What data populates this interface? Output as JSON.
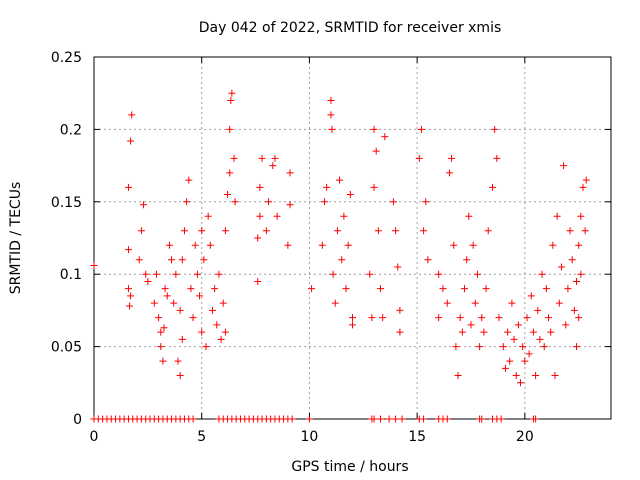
{
  "chart_data": {
    "type": "scatter",
    "title": "Day 042 of 2022, SRMTID for receiver xmis",
    "xlabel": "GPS time / hours",
    "ylabel": "SRMTID / TECUs",
    "xlim": [
      0,
      24
    ],
    "ylim": [
      0,
      0.25
    ],
    "x_ticks": [
      0,
      5,
      10,
      15,
      20
    ],
    "x_tick_labels": [
      "0",
      "5",
      "10",
      "15",
      "20"
    ],
    "y_ticks": [
      0,
      0.05,
      0.1,
      0.15,
      0.2,
      0.25
    ],
    "y_tick_labels": [
      "0",
      "0.05",
      "0.1",
      "0.15",
      "0.2",
      "0.25"
    ],
    "grid": true,
    "marker": "plus",
    "color": "#ff0000",
    "series": [
      {
        "name": "SRMTID",
        "points": [
          [
            0.0,
            0.106
          ],
          [
            1.6,
            0.09
          ],
          [
            1.6,
            0.117
          ],
          [
            1.6,
            0.16
          ],
          [
            1.7,
            0.192
          ],
          [
            1.75,
            0.21
          ],
          [
            1.7,
            0.085
          ],
          [
            1.65,
            0.078
          ],
          [
            2.1,
            0.11
          ],
          [
            2.2,
            0.13
          ],
          [
            2.3,
            0.148
          ],
          [
            2.4,
            0.1
          ],
          [
            2.5,
            0.095
          ],
          [
            2.8,
            0.08
          ],
          [
            2.9,
            0.1
          ],
          [
            3.0,
            0.07
          ],
          [
            3.1,
            0.06
          ],
          [
            3.1,
            0.05
          ],
          [
            3.2,
            0.04
          ],
          [
            3.25,
            0.063
          ],
          [
            3.3,
            0.09
          ],
          [
            3.4,
            0.085
          ],
          [
            3.5,
            0.12
          ],
          [
            3.6,
            0.11
          ],
          [
            3.7,
            0.08
          ],
          [
            3.8,
            0.1
          ],
          [
            3.9,
            0.04
          ],
          [
            4.0,
            0.03
          ],
          [
            4.0,
            0.075
          ],
          [
            4.1,
            0.055
          ],
          [
            4.1,
            0.11
          ],
          [
            4.2,
            0.13
          ],
          [
            4.3,
            0.15
          ],
          [
            4.4,
            0.165
          ],
          [
            4.5,
            0.09
          ],
          [
            4.6,
            0.07
          ],
          [
            4.7,
            0.12
          ],
          [
            4.8,
            0.1
          ],
          [
            4.9,
            0.085
          ],
          [
            5.0,
            0.06
          ],
          [
            5.0,
            0.13
          ],
          [
            5.1,
            0.11
          ],
          [
            5.2,
            0.05
          ],
          [
            5.3,
            0.14
          ],
          [
            5.4,
            0.12
          ],
          [
            5.5,
            0.075
          ],
          [
            5.6,
            0.09
          ],
          [
            5.7,
            0.065
          ],
          [
            5.8,
            0.1
          ],
          [
            5.9,
            0.055
          ],
          [
            6.0,
            0.08
          ],
          [
            6.1,
            0.06
          ],
          [
            6.1,
            0.13
          ],
          [
            6.2,
            0.155
          ],
          [
            6.3,
            0.17
          ],
          [
            6.3,
            0.2
          ],
          [
            6.35,
            0.22
          ],
          [
            6.4,
            0.225
          ],
          [
            6.5,
            0.18
          ],
          [
            6.55,
            0.15
          ],
          [
            7.6,
            0.095
          ],
          [
            7.6,
            0.125
          ],
          [
            7.7,
            0.14
          ],
          [
            7.7,
            0.16
          ],
          [
            7.8,
            0.18
          ],
          [
            8.0,
            0.13
          ],
          [
            8.1,
            0.15
          ],
          [
            8.3,
            0.175
          ],
          [
            8.4,
            0.18
          ],
          [
            8.5,
            0.14
          ],
          [
            9.0,
            0.12
          ],
          [
            9.1,
            0.17
          ],
          [
            9.1,
            0.148
          ],
          [
            10.1,
            0.09
          ],
          [
            10.6,
            0.12
          ],
          [
            10.7,
            0.15
          ],
          [
            10.8,
            0.16
          ],
          [
            11.0,
            0.21
          ],
          [
            11.0,
            0.22
          ],
          [
            11.05,
            0.2
          ],
          [
            11.1,
            0.1
          ],
          [
            11.2,
            0.08
          ],
          [
            11.3,
            0.13
          ],
          [
            11.4,
            0.165
          ],
          [
            11.5,
            0.11
          ],
          [
            11.6,
            0.14
          ],
          [
            11.7,
            0.09
          ],
          [
            11.8,
            0.12
          ],
          [
            11.9,
            0.155
          ],
          [
            12.0,
            0.07
          ],
          [
            12.0,
            0.065
          ],
          [
            12.8,
            0.1
          ],
          [
            12.9,
            0.07
          ],
          [
            13.0,
            0.16
          ],
          [
            13.0,
            0.2
          ],
          [
            13.1,
            0.185
          ],
          [
            13.2,
            0.13
          ],
          [
            13.3,
            0.09
          ],
          [
            13.4,
            0.07
          ],
          [
            13.5,
            0.195
          ],
          [
            13.9,
            0.15
          ],
          [
            14.0,
            0.13
          ],
          [
            14.1,
            0.105
          ],
          [
            14.2,
            0.075
          ],
          [
            14.2,
            0.06
          ],
          [
            15.1,
            0.18
          ],
          [
            15.2,
            0.2
          ],
          [
            15.3,
            0.13
          ],
          [
            15.4,
            0.15
          ],
          [
            15.5,
            0.11
          ],
          [
            16.0,
            0.1
          ],
          [
            16.0,
            0.07
          ],
          [
            16.2,
            0.09
          ],
          [
            16.4,
            0.08
          ],
          [
            16.5,
            0.17
          ],
          [
            16.6,
            0.18
          ],
          [
            16.7,
            0.12
          ],
          [
            16.8,
            0.05
          ],
          [
            16.9,
            0.03
          ],
          [
            17.0,
            0.07
          ],
          [
            17.1,
            0.06
          ],
          [
            17.2,
            0.09
          ],
          [
            17.3,
            0.11
          ],
          [
            17.4,
            0.14
          ],
          [
            17.5,
            0.065
          ],
          [
            17.6,
            0.12
          ],
          [
            17.7,
            0.08
          ],
          [
            17.8,
            0.1
          ],
          [
            17.9,
            0.05
          ],
          [
            18.0,
            0.07
          ],
          [
            18.1,
            0.06
          ],
          [
            18.2,
            0.09
          ],
          [
            18.3,
            0.13
          ],
          [
            18.5,
            0.16
          ],
          [
            18.6,
            0.2
          ],
          [
            18.7,
            0.18
          ],
          [
            18.8,
            0.07
          ],
          [
            19.0,
            0.05
          ],
          [
            19.1,
            0.035
          ],
          [
            19.2,
            0.06
          ],
          [
            19.3,
            0.04
          ],
          [
            19.4,
            0.08
          ],
          [
            19.5,
            0.055
          ],
          [
            19.6,
            0.03
          ],
          [
            19.7,
            0.065
          ],
          [
            19.8,
            0.025
          ],
          [
            19.9,
            0.05
          ],
          [
            20.0,
            0.04
          ],
          [
            20.1,
            0.07
          ],
          [
            20.2,
            0.045
          ],
          [
            20.3,
            0.085
          ],
          [
            20.4,
            0.06
          ],
          [
            20.5,
            0.03
          ],
          [
            20.6,
            0.075
          ],
          [
            20.7,
            0.055
          ],
          [
            20.8,
            0.1
          ],
          [
            20.9,
            0.05
          ],
          [
            21.0,
            0.09
          ],
          [
            21.1,
            0.07
          ],
          [
            21.2,
            0.06
          ],
          [
            21.3,
            0.12
          ],
          [
            21.4,
            0.03
          ],
          [
            21.5,
            0.14
          ],
          [
            21.6,
            0.08
          ],
          [
            21.7,
            0.105
          ],
          [
            21.8,
            0.175
          ],
          [
            21.9,
            0.065
          ],
          [
            22.0,
            0.09
          ],
          [
            22.1,
            0.13
          ],
          [
            22.2,
            0.11
          ],
          [
            22.3,
            0.075
          ],
          [
            22.4,
            0.095
          ],
          [
            22.5,
            0.12
          ],
          [
            22.6,
            0.14
          ],
          [
            22.7,
            0.16
          ],
          [
            22.8,
            0.13
          ],
          [
            22.85,
            0.165
          ],
          [
            22.5,
            0.07
          ],
          [
            22.6,
            0.1
          ],
          [
            22.4,
            0.05
          ]
        ],
        "zero_points": [
          0.0,
          0.2,
          0.4,
          0.6,
          0.8,
          1.0,
          1.2,
          1.4,
          1.6,
          1.8,
          2.0,
          2.2,
          2.4,
          2.6,
          2.8,
          3.0,
          3.2,
          3.4,
          3.6,
          3.8,
          4.0,
          4.2,
          4.4,
          4.6,
          5.8,
          6.0,
          6.2,
          6.4,
          6.6,
          6.8,
          7.0,
          7.2,
          7.4,
          7.6,
          7.8,
          8.0,
          8.2,
          8.4,
          8.6,
          8.8,
          9.0,
          9.2,
          10.0,
          12.9,
          13.0,
          13.3,
          13.7,
          14.0,
          14.3,
          15.1,
          15.3,
          16.0,
          16.2,
          16.4,
          17.9,
          18.0,
          18.5,
          18.7,
          18.9,
          20.4,
          20.5
        ]
      }
    ]
  }
}
